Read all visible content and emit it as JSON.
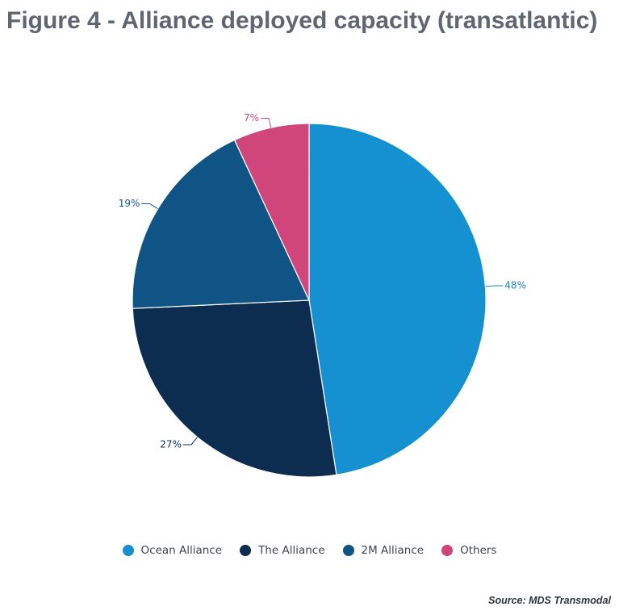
{
  "header": {
    "title": "Figure 4 - Alliance deployed capacity (transatlantic)"
  },
  "chart_data": {
    "type": "pie",
    "title": "Figure 4 - Alliance deployed capacity (transatlantic)",
    "categories": [
      "Ocean Alliance",
      "The Alliance",
      "2M Alliance",
      "Others"
    ],
    "values": [
      48,
      27,
      19,
      7
    ],
    "labels": [
      "48%",
      "27%",
      "19%",
      "7%"
    ],
    "colors": [
      "#1591d2",
      "#0c2d50",
      "#0f5485",
      "#d0457a"
    ],
    "label_colors": [
      "#1b82c2",
      "#0c2d50",
      "#0f5485",
      "#d0457a"
    ],
    "start": "12 o'clock",
    "direction": "clockwise",
    "legend_placement": "bottom"
  },
  "legend": {
    "items": [
      {
        "label": "Ocean Alliance",
        "color": "#1591d2"
      },
      {
        "label": "The Alliance",
        "color": "#0c2d50"
      },
      {
        "label": "2M Alliance",
        "color": "#0f5485"
      },
      {
        "label": "Others",
        "color": "#d0457a"
      }
    ]
  },
  "footer": {
    "source": "Source: MDS Transmodal"
  }
}
